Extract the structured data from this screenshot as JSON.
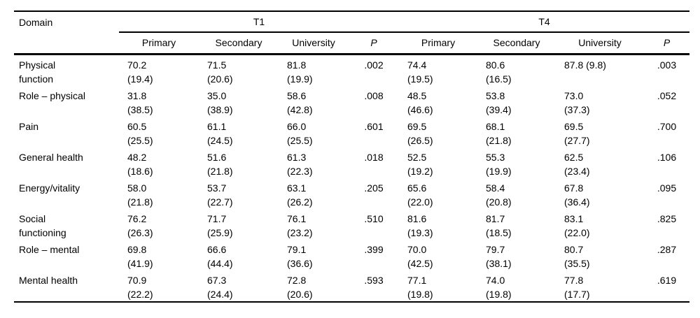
{
  "table": {
    "domain_header": "Domain",
    "groups": [
      {
        "label": "T1"
      },
      {
        "label": "T4"
      }
    ],
    "subheaders": [
      "Primary",
      "Secondary",
      "University",
      "P"
    ],
    "rows": [
      {
        "domain": [
          "Physical",
          "function"
        ],
        "cells": [
          [
            "70.2",
            "(19.4)"
          ],
          [
            "71.5",
            "(20.6)"
          ],
          [
            "81.8",
            "(19.9)"
          ],
          [
            ".002",
            ""
          ],
          [
            "74.4",
            "(19.5)"
          ],
          [
            "80.6",
            "(16.5)"
          ],
          [
            "87.8 (9.8)",
            ""
          ],
          [
            ".003",
            ""
          ]
        ]
      },
      {
        "domain": [
          "Role – physical",
          ""
        ],
        "cells": [
          [
            "31.8",
            "(38.5)"
          ],
          [
            "35.0",
            "(38.9)"
          ],
          [
            "58.6",
            "(42.8)"
          ],
          [
            ".008",
            ""
          ],
          [
            "48.5",
            "(46.6)"
          ],
          [
            "53.8",
            "(39.4)"
          ],
          [
            "73.0",
            "(37.3)"
          ],
          [
            ".052",
            ""
          ]
        ]
      },
      {
        "domain": [
          "Pain",
          ""
        ],
        "cells": [
          [
            "60.5",
            "(25.5)"
          ],
          [
            "61.1",
            "(24.5)"
          ],
          [
            "66.0",
            "(25.5)"
          ],
          [
            ".601",
            ""
          ],
          [
            "69.5",
            "(26.5)"
          ],
          [
            "68.1",
            "(21.8)"
          ],
          [
            "69.5",
            "(27.7)"
          ],
          [
            ".700",
            ""
          ]
        ]
      },
      {
        "domain": [
          "General health",
          ""
        ],
        "cells": [
          [
            "48.2",
            "(18.6)"
          ],
          [
            "51.6",
            "(21.8)"
          ],
          [
            "61.3",
            "(22.3)"
          ],
          [
            ".018",
            ""
          ],
          [
            "52.5",
            "(19.2)"
          ],
          [
            "55.3",
            "(19.9)"
          ],
          [
            "62.5",
            "(23.4)"
          ],
          [
            ".106",
            ""
          ]
        ]
      },
      {
        "domain": [
          "Energy/vitality",
          ""
        ],
        "cells": [
          [
            "58.0",
            "(21.8)"
          ],
          [
            "53.7",
            "(22.7)"
          ],
          [
            "63.1",
            "(26.2)"
          ],
          [
            ".205",
            ""
          ],
          [
            "65.6",
            "(22.0)"
          ],
          [
            "58.4",
            "(20.8)"
          ],
          [
            "67.8",
            "(36.4)"
          ],
          [
            ".095",
            ""
          ]
        ]
      },
      {
        "domain": [
          "Social",
          "functioning"
        ],
        "cells": [
          [
            "76.2",
            "(26.3)"
          ],
          [
            "71.7",
            "(25.9)"
          ],
          [
            "76.1",
            "(23.2)"
          ],
          [
            ".510",
            ""
          ],
          [
            "81.6",
            "(19.3)"
          ],
          [
            "81.7",
            "(18.5)"
          ],
          [
            "83.1",
            "(22.0)"
          ],
          [
            ".825",
            ""
          ]
        ]
      },
      {
        "domain": [
          "Role – mental",
          ""
        ],
        "cells": [
          [
            "69.8",
            "(41.9)"
          ],
          [
            "66.6",
            "(44.4)"
          ],
          [
            "79.1",
            "(36.6)"
          ],
          [
            ".399",
            ""
          ],
          [
            "70.0",
            "(42.5)"
          ],
          [
            "79.7",
            "(38.1)"
          ],
          [
            "80.7",
            "(35.5)"
          ],
          [
            ".287",
            ""
          ]
        ]
      },
      {
        "domain": [
          "Mental health",
          ""
        ],
        "cells": [
          [
            "70.9",
            "(22.2)"
          ],
          [
            "67.3",
            "(24.4)"
          ],
          [
            "72.8",
            "(20.6)"
          ],
          [
            ".593",
            ""
          ],
          [
            "77.1",
            "(19.8)"
          ],
          [
            "74.0",
            "(19.8)"
          ],
          [
            "77.8",
            "(17.7)"
          ],
          [
            ".619",
            ""
          ]
        ]
      }
    ]
  },
  "chart_data": {
    "type": "table",
    "columns": [
      "Domain",
      "T1 Primary",
      "T1 Secondary",
      "T1 University",
      "T1 P",
      "T4 Primary",
      "T4 Secondary",
      "T4 University",
      "T4 P"
    ],
    "rows": [
      [
        "Physical function",
        "70.2 (19.4)",
        "71.5 (20.6)",
        "81.8 (19.9)",
        ".002",
        "74.4 (19.5)",
        "80.6 (16.5)",
        "87.8 (9.8)",
        ".003"
      ],
      [
        "Role – physical",
        "31.8 (38.5)",
        "35.0 (38.9)",
        "58.6 (42.8)",
        ".008",
        "48.5 (46.6)",
        "53.8 (39.4)",
        "73.0 (37.3)",
        ".052"
      ],
      [
        "Pain",
        "60.5 (25.5)",
        "61.1 (24.5)",
        "66.0 (25.5)",
        ".601",
        "69.5 (26.5)",
        "68.1 (21.8)",
        "69.5 (27.7)",
        ".700"
      ],
      [
        "General health",
        "48.2 (18.6)",
        "51.6 (21.8)",
        "61.3 (22.3)",
        ".018",
        "52.5 (19.2)",
        "55.3 (19.9)",
        "62.5 (23.4)",
        ".106"
      ],
      [
        "Energy/vitality",
        "58.0 (21.8)",
        "53.7 (22.7)",
        "63.1 (26.2)",
        ".205",
        "65.6 (22.0)",
        "58.4 (20.8)",
        "67.8 (36.4)",
        ".095"
      ],
      [
        "Social functioning",
        "76.2 (26.3)",
        "71.7 (25.9)",
        "76.1 (23.2)",
        ".510",
        "81.6 (19.3)",
        "81.7 (18.5)",
        "83.1 (22.0)",
        ".825"
      ],
      [
        "Role – mental",
        "69.8 (41.9)",
        "66.6 (44.4)",
        "79.1 (36.6)",
        ".399",
        "70.0 (42.5)",
        "79.7 (38.1)",
        "80.7 (35.5)",
        ".287"
      ],
      [
        "Mental health",
        "70.9 (22.2)",
        "67.3 (24.4)",
        "72.8 (20.6)",
        ".593",
        "77.1 (19.8)",
        "74.0 (19.8)",
        "77.8 (17.7)",
        ".619"
      ]
    ]
  }
}
